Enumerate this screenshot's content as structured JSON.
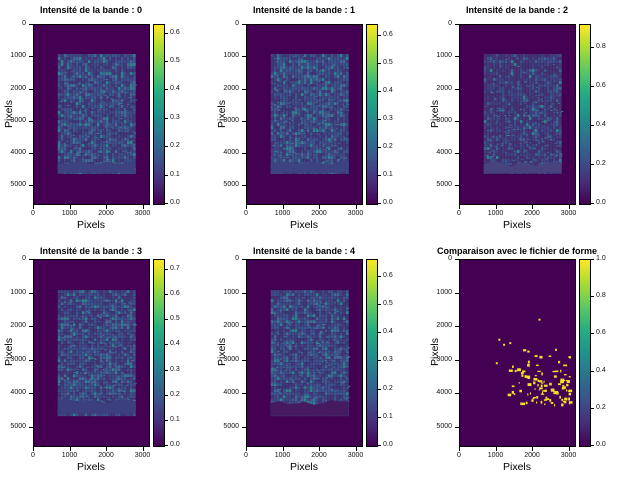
{
  "figure": {
    "kind": "matplotlib-multipanel",
    "n_subplots": 6,
    "layout": "2 rows x 3 columns"
  },
  "colors": {
    "figure_background": "#ffffff",
    "heatmap_background": "#440154",
    "axis_text": "#000000",
    "highlight_yellow": "#f3e125",
    "noise_palette": [
      "#3e3a78",
      "#3d4b85",
      "#3a578d",
      "#406a95",
      "#2e8290"
    ],
    "noise_weights": [
      0.3,
      0.3,
      0.22,
      0.11,
      0.07
    ],
    "noise_palette_dark": [
      "#433473",
      "#3e4280",
      "#3b4f88",
      "#3a608f",
      "#2e8290"
    ],
    "noise_weights_dark": [
      0.45,
      0.3,
      0.15,
      0.07,
      0.03
    ],
    "speck_colors": [
      "#3f7d95",
      "#49659b"
    ],
    "viridis_stops": [
      "#440154",
      "#472d7b",
      "#3b528b",
      "#2c728e",
      "#21918c",
      "#27ad81",
      "#5ec962",
      "#aadc32",
      "#fde725"
    ]
  },
  "chart_data": [
    {
      "type": "heatmap",
      "title": "Intensité de la bande : 0",
      "xlabel": "Pixels",
      "ylabel": "Pixels",
      "x_range": [
        0,
        3150
      ],
      "y_range": [
        0,
        5550
      ],
      "y_inverted": true,
      "x_ticks": [
        "0",
        "1000",
        "2000",
        "3000"
      ],
      "y_ticks": [
        "0",
        "1000",
        "2000",
        "3000",
        "4000",
        "5000"
      ],
      "colormap": "viridis",
      "colorbar_ticks": [
        "0.0",
        "0.1",
        "0.2",
        "0.3",
        "0.4",
        "0.5",
        "0.6"
      ],
      "colorbar_vmax": 0.63,
      "background_value": 0.0,
      "image_region": {
        "x": [
          650,
          2780
        ],
        "y": [
          900,
          4580
        ],
        "coast_from_y": 4210,
        "coast_color": "#3d4380",
        "mean_value": 0.12,
        "texture": "noisy satellite band intensity"
      }
    },
    {
      "type": "heatmap",
      "title": "Intensité de la bande : 1",
      "xlabel": "Pixels",
      "ylabel": "Pixels",
      "x_range": [
        0,
        3150
      ],
      "y_range": [
        0,
        5550
      ],
      "y_inverted": true,
      "x_ticks": [
        "0",
        "1000",
        "2000",
        "3000"
      ],
      "y_ticks": [
        "0",
        "1000",
        "2000",
        "3000",
        "4000",
        "5000"
      ],
      "colormap": "viridis",
      "colorbar_ticks": [
        "0.0",
        "0.1",
        "0.2",
        "0.3",
        "0.4",
        "0.5",
        "0.6"
      ],
      "colorbar_vmax": 0.64,
      "background_value": 0.0,
      "image_region": {
        "x": [
          650,
          2780
        ],
        "y": [
          900,
          4580
        ],
        "coast_from_y": 4210,
        "coast_color": "#3d4380",
        "mean_value": 0.12,
        "texture": "noisy satellite band intensity"
      }
    },
    {
      "type": "heatmap",
      "title": "Intensité de la bande : 2",
      "xlabel": "Pixels",
      "ylabel": "Pixels",
      "x_range": [
        0,
        3150
      ],
      "y_range": [
        0,
        5550
      ],
      "y_inverted": true,
      "x_ticks": [
        "0",
        "1000",
        "2000",
        "3000"
      ],
      "y_ticks": [
        "0",
        "1000",
        "2000",
        "3000",
        "4000",
        "5000"
      ],
      "colormap": "viridis",
      "colorbar_ticks": [
        "0.0",
        "0.2",
        "0.4",
        "0.6",
        "0.8"
      ],
      "colorbar_vmax": 0.92,
      "background_value": 0.0,
      "dark_variant": true,
      "image_region": {
        "x": [
          650,
          2780
        ],
        "y": [
          900,
          4580
        ],
        "coast_from_y": 4250,
        "coast_color": "#46437f",
        "mean_value": 0.1,
        "texture": "noisy satellite band intensity, darker"
      }
    },
    {
      "type": "heatmap",
      "title": "Intensité de la bande : 3",
      "xlabel": "Pixels",
      "ylabel": "Pixels",
      "x_range": [
        0,
        3150
      ],
      "y_range": [
        0,
        5550
      ],
      "y_inverted": true,
      "x_ticks": [
        "0",
        "1000",
        "2000",
        "3000"
      ],
      "y_ticks": [
        "0",
        "1000",
        "2000",
        "3000",
        "4000",
        "5000"
      ],
      "colormap": "viridis",
      "colorbar_ticks": [
        "0.0",
        "0.1",
        "0.2",
        "0.3",
        "0.4",
        "0.5",
        "0.6",
        "0.7"
      ],
      "colorbar_vmax": 0.74,
      "background_value": 0.0,
      "image_region": {
        "x": [
          650,
          2780
        ],
        "y": [
          900,
          4580
        ],
        "coast_from_y": 4150,
        "coast_color": "#3c3f7d",
        "mean_value": 0.12,
        "texture": "noisy satellite band intensity"
      }
    },
    {
      "type": "heatmap",
      "title": "Intensité de la bande : 4",
      "xlabel": "Pixels",
      "ylabel": "Pixels",
      "x_range": [
        0,
        3150
      ],
      "y_range": [
        0,
        5550
      ],
      "y_inverted": true,
      "x_ticks": [
        "0",
        "1000",
        "2000",
        "3000"
      ],
      "y_ticks": [
        "0",
        "1000",
        "2000",
        "3000",
        "4000",
        "5000"
      ],
      "colormap": "viridis",
      "colorbar_ticks": [
        "0.0",
        "0.1",
        "0.2",
        "0.3",
        "0.4",
        "0.5",
        "0.6"
      ],
      "colorbar_vmax": 0.66,
      "background_value": 0.0,
      "image_region": {
        "x": [
          650,
          2780
        ],
        "y": [
          900,
          4650
        ],
        "coast_from_y": 4200,
        "coast_color": "#451a5e",
        "mean_value": 0.13,
        "texture": "noisy satellite band intensity"
      }
    },
    {
      "type": "heatmap",
      "title": "Comparaison avec le fichier de forme",
      "xlabel": "Pixels",
      "ylabel": "Pixels",
      "x_range": [
        0,
        3150
      ],
      "y_range": [
        0,
        5550
      ],
      "y_inverted": true,
      "x_ticks": [
        "0",
        "1000",
        "2000",
        "3000"
      ],
      "y_ticks": [
        "0",
        "1000",
        "2000",
        "3000",
        "4000",
        "5000"
      ],
      "colormap": "viridis",
      "colorbar_ticks": [
        "0.0",
        "0.2",
        "0.4",
        "0.6",
        "0.8",
        "1.0"
      ],
      "colorbar_vmax": 1.0,
      "background_value": 0.0,
      "highlight_points": {
        "value": 1.0,
        "color": "#f3e125",
        "count": 105,
        "x_range": [
          1250,
          3000
        ],
        "y_range": [
          2600,
          4300
        ],
        "distribution": "clustered toward lower-right",
        "extra_points": [
          [
            2150,
            1750
          ],
          [
            1050,
            2350
          ],
          [
            1180,
            2500
          ],
          [
            980,
            3050
          ],
          [
            2600,
            2650
          ],
          [
            1350,
            2450
          ]
        ]
      }
    }
  ]
}
